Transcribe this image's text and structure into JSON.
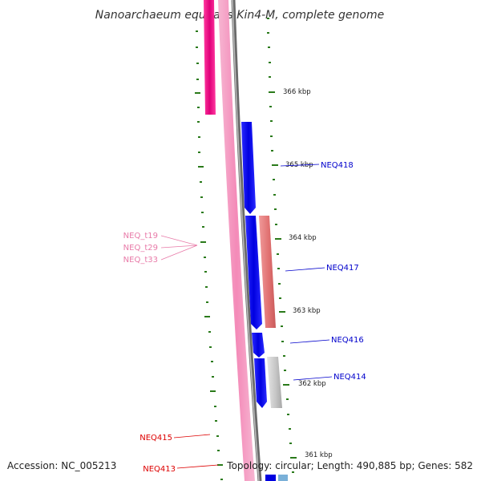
{
  "title": "Nanoarchaeum equitans Kin4-M, complete genome",
  "accession": "Accession: NC_005213",
  "summary": "Topology: circular; Length: 490,885 bp; Genes: 582",
  "colors": {
    "forward_cds": "#0000ee",
    "reverse_cds_dark": "#ee1188",
    "trna": "#f4a6c8",
    "rrna": "#ec8080",
    "other": "#c8c8c8",
    "backbone": "#8a8a8a",
    "tick": "#2a7a1a",
    "label_blue": "#0000cc",
    "label_pink": "#e87aa8",
    "label_red": "#dd0000"
  },
  "ticks": [
    "366 kbp",
    "365 kbp",
    "364 kbp",
    "363 kbp",
    "362 kbp",
    "361 kbp"
  ],
  "labels": {
    "forward": [
      "NEQ418",
      "NEQ417",
      "NEQ416",
      "NEQ414"
    ],
    "trna": [
      "NEQ_t19",
      "NEQ_t29",
      "NEQ_t33"
    ],
    "reverse": [
      "NEQ415",
      "NEQ413"
    ]
  }
}
